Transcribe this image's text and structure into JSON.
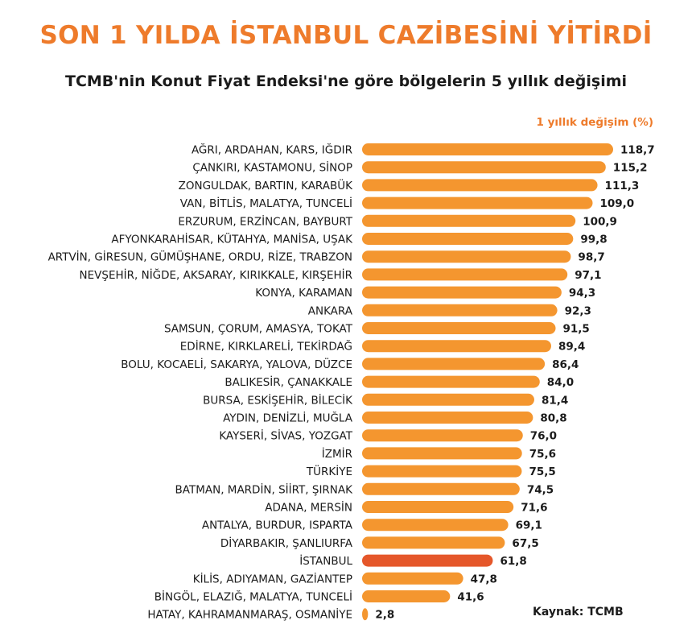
{
  "header": {
    "title": "SON 1 YILDA İSTANBUL CAZİBESİNİ YİTİRDİ",
    "subtitle": "TCMB'nin Konut Fiyat Endeksi'ne göre bölgelerin 5 yıllık değişimi",
    "value_label": "1 yıllık değişim (%)"
  },
  "source": "Kaynak: TCMB",
  "colors": {
    "bar": "#f4962f",
    "highlight": "#e5572a",
    "title": "#ee7b2b",
    "text": "#1b1b1b"
  },
  "chart_data": {
    "type": "bar",
    "orientation": "horizontal",
    "categories": [
      "AĞRI, ARDAHAN, KARS, IĞDIR",
      "ÇANKIRI, KASTAMONU, SİNOP",
      "ZONGULDAK, BARTIN, KARABÜK",
      "VAN, BİTLİS, MALATYA, TUNCELİ",
      "ERZURUM, ERZİNCAN, BAYBURT",
      "AFYONKARAHİSAR, KÜTAHYA, MANİSA, UŞAK",
      "ARTVİN, GİRESUN, GÜMÜŞHANE, ORDU, RİZE, TRABZON",
      "NEVŞEHİR, NİĞDE, AKSARAY, KIRIKKALE, KIRŞEHİR",
      "KONYA, KARAMAN",
      "ANKARA",
      "SAMSUN, ÇORUM, AMASYA, TOKAT",
      "EDİRNE, KIRKLARELİ, TEKİRDAĞ",
      "BOLU, KOCAELİ, SAKARYA, YALOVA, DÜZCE",
      "BALIKESİR, ÇANAKKALE",
      "BURSA, ESKİŞEHİR, BİLECİK",
      "AYDIN, DENİZLİ, MUĞLA",
      "KAYSERİ, SİVAS, YOZGAT",
      "İZMİR",
      "TÜRKİYE",
      "BATMAN, MARDİN, SİİRT, ŞIRNAK",
      "ADANA, MERSİN",
      "ANTALYA, BURDUR, ISPARTA",
      "DİYARBAKIR, ŞANLIURFA",
      "İSTANBUL",
      "KİLİS, ADIYAMAN, GAZİANTEP",
      "BİNGÖL, ELAZIĞ, MALATYA, TUNCELİ",
      "HATAY, KAHRAMANMARAŞ, OSMANİYE"
    ],
    "values": [
      118.7,
      115.2,
      111.3,
      109.0,
      100.9,
      99.8,
      98.7,
      97.1,
      94.3,
      92.3,
      91.5,
      89.4,
      86.4,
      84.0,
      81.4,
      80.8,
      76.0,
      75.6,
      75.5,
      74.5,
      71.6,
      69.1,
      67.5,
      61.8,
      47.8,
      41.6,
      2.8
    ],
    "value_labels": [
      "118,7",
      "115,2",
      "111,3",
      "109,0",
      "100,9",
      "99,8",
      "98,7",
      "97,1",
      "94,3",
      "92,3",
      "91,5",
      "89,4",
      "86,4",
      "84,0",
      "81,4",
      "80,8",
      "76,0",
      "75,6",
      "75,5",
      "74,5",
      "71,6",
      "69,1",
      "67,5",
      "61,8",
      "47,8",
      "41,6",
      "2,8"
    ],
    "highlight": "İSTANBUL",
    "xlim": [
      0,
      118.7
    ],
    "grid": false,
    "legend": "none"
  }
}
